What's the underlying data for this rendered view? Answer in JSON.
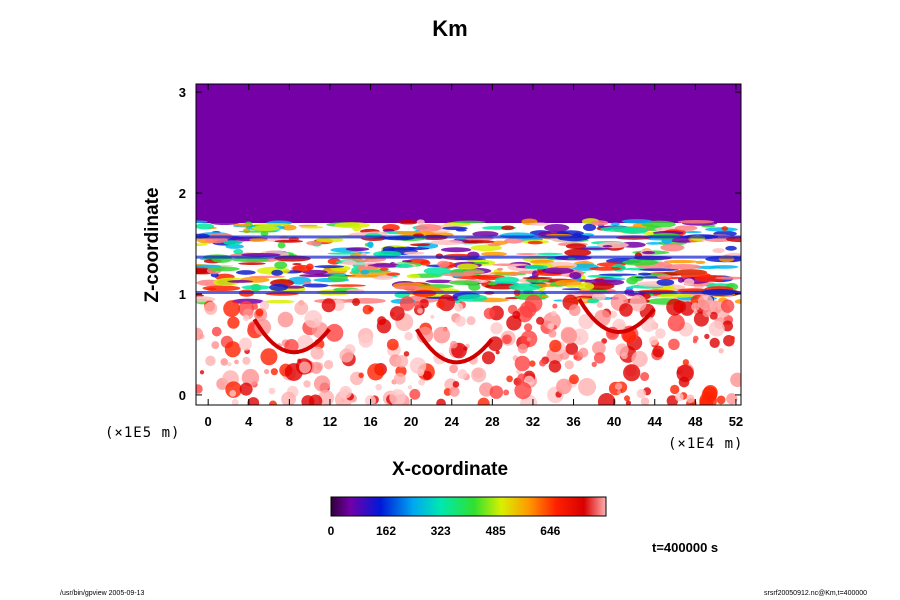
{
  "chart_data": {
    "type": "heatmap",
    "title": "Km",
    "xlabel": "X-coordinate",
    "ylabel": "Z-coordinate",
    "x_unit": "(×1E4 m)",
    "y_unit": "(×1E5 m)",
    "x_ticks": [
      "0",
      "4",
      "8",
      "12",
      "16",
      "20",
      "24",
      "28",
      "32",
      "36",
      "40",
      "44",
      "48",
      "52"
    ],
    "y_ticks": [
      "0",
      "1",
      "2",
      "3"
    ],
    "xlim": [
      -1.2,
      52.5
    ],
    "ylim": [
      -0.1,
      3.08
    ],
    "colorbar": {
      "ticks": [
        "0",
        "162",
        "323",
        "485",
        "646"
      ],
      "range": [
        0,
        810
      ]
    },
    "time_label": "t=400000 s",
    "regions": [
      {
        "band": "upper",
        "z_range": [
          1.72,
          3.08
        ],
        "value": 0
      },
      {
        "band": "mixed",
        "z_range": [
          0.92,
          1.72
        ],
        "value_range": [
          0,
          810
        ]
      },
      {
        "band": "lower",
        "z_range": [
          -0.1,
          0.92
        ],
        "value_range": [
          0,
          810
        ]
      }
    ]
  },
  "footer": {
    "left": "/usr/bin/gpview 2005-09-13",
    "right": "srsrf20050912.nc@Km,t=400000"
  }
}
